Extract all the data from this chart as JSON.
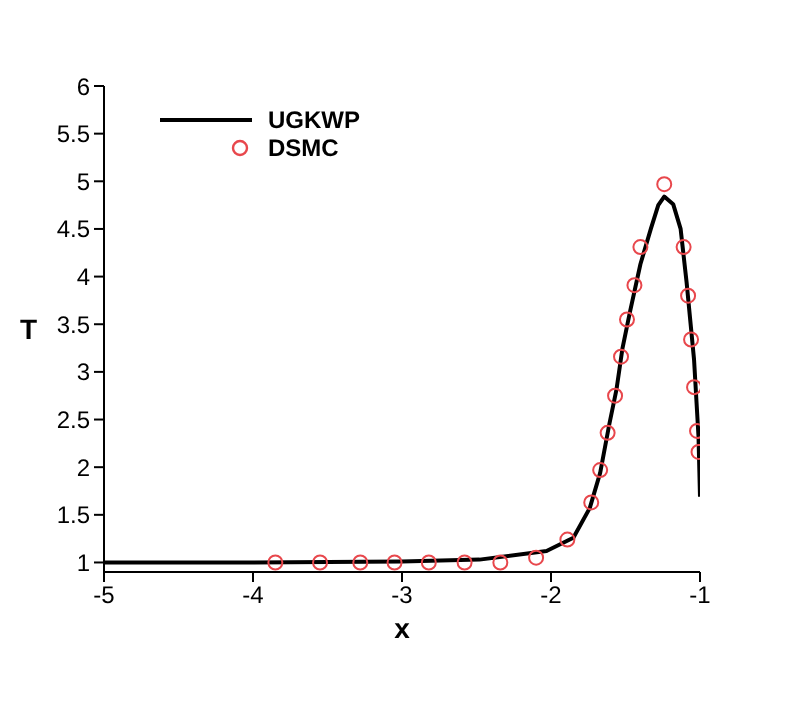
{
  "chart_data": {
    "type": "line",
    "xlabel": "x",
    "ylabel": "T",
    "xlim": [
      -5,
      -1
    ],
    "xticks": [
      -5,
      -4,
      -3,
      -2,
      -1
    ],
    "ylim": [
      0.9,
      6
    ],
    "yticks": [
      1,
      1.5,
      2,
      2.5,
      3,
      3.5,
      4,
      4.5,
      5,
      5.5,
      6
    ],
    "grid": false,
    "legend": "top left",
    "series": [
      {
        "name": "UGKWP",
        "color": "#000000",
        "marker": "none",
        "line_style": "solid",
        "x": [
          -5,
          -4,
          -3,
          -2.48,
          -2.03,
          -1.85,
          -1.74,
          -1.67,
          -1.61,
          -1.56,
          -1.52,
          -1.47,
          -1.4,
          -1.33,
          -1.28,
          -1.24,
          -1.18,
          -1.13,
          -1.09,
          -1.04,
          -1.01,
          -1.0
        ],
        "values": [
          1.0,
          1.0,
          1.01,
          1.03,
          1.12,
          1.26,
          1.57,
          1.94,
          2.44,
          2.82,
          3.25,
          3.63,
          4.13,
          4.5,
          4.75,
          4.84,
          4.76,
          4.5,
          3.94,
          3.13,
          2.32,
          1.69
        ]
      },
      {
        "name": "DSMC",
        "type": "scatter",
        "color": "#e8474c",
        "marker": "circle",
        "x": [
          -3.85,
          -3.55,
          -3.28,
          -3.05,
          -2.82,
          -2.58,
          -2.34,
          -2.1,
          -1.89,
          -1.73,
          -1.67,
          -1.62,
          -1.57,
          -1.53,
          -1.49,
          -1.44,
          -1.4,
          -1.24,
          -1.11,
          -1.08,
          -1.06,
          -1.04,
          -1.02,
          -1.01
        ],
        "values": [
          1.0,
          1.0,
          1.0,
          1.0,
          1.0,
          1.0,
          1.0,
          1.05,
          1.24,
          1.63,
          1.97,
          2.36,
          2.75,
          3.16,
          3.55,
          3.91,
          4.31,
          4.97,
          4.31,
          3.8,
          3.34,
          2.84,
          2.38,
          2.16
        ]
      }
    ]
  }
}
